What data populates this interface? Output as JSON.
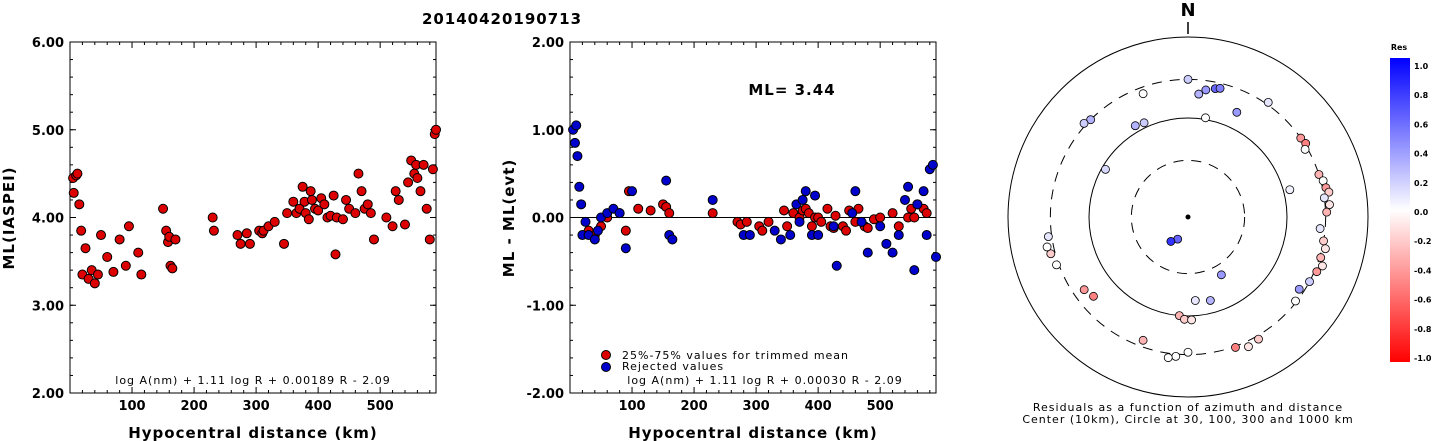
{
  "event_id": "20140420190713",
  "colors": {
    "trimmed": "#dd0000",
    "rejected": "#0000cc",
    "marker_edge": "#000000"
  },
  "chart_data": [
    {
      "id": "left",
      "type": "scatter",
      "title": "",
      "xlabel": "Hypocentral distance (km)",
      "ylabel": "ML(IASPEI)",
      "xlim": [
        0,
        590
      ],
      "ylim": [
        2.0,
        6.0
      ],
      "xticks": [
        100,
        200,
        300,
        400,
        500
      ],
      "yticks": [
        "2.00",
        "3.00",
        "4.00",
        "5.00",
        "6.00"
      ],
      "formula": "log A(nm) + 1.11 log R + 0.00189 R - 2.09",
      "series": [
        {
          "x": [
            5,
            6,
            10,
            12,
            15,
            18,
            20,
            25,
            30,
            35,
            40,
            45,
            50,
            60,
            70,
            80,
            90,
            95,
            110,
            115,
            150,
            155,
            158,
            160,
            162,
            165,
            170,
            230,
            232,
            270,
            275,
            285,
            290,
            305,
            310,
            312,
            320,
            330,
            345,
            350,
            360,
            365,
            370,
            375,
            378,
            380,
            385,
            388,
            390,
            395,
            400,
            405,
            410,
            415,
            420,
            425,
            428,
            430,
            440,
            445,
            450,
            460,
            465,
            470,
            475,
            480,
            485,
            490,
            510,
            520,
            525,
            530,
            540,
            545,
            550,
            555,
            558,
            560,
            565,
            570,
            575,
            580,
            585,
            588,
            590
          ],
          "y": [
            4.45,
            4.28,
            4.48,
            4.5,
            4.15,
            3.85,
            3.35,
            3.65,
            3.3,
            3.4,
            3.25,
            3.35,
            3.8,
            3.55,
            3.38,
            3.75,
            3.45,
            3.9,
            3.6,
            3.35,
            4.1,
            3.85,
            3.72,
            3.78,
            3.45,
            3.42,
            3.75,
            4.0,
            3.85,
            3.8,
            3.7,
            3.82,
            3.7,
            3.85,
            3.82,
            3.85,
            3.9,
            3.95,
            3.7,
            4.05,
            4.18,
            4.05,
            4.1,
            4.35,
            4.18,
            4.05,
            3.98,
            4.3,
            4.2,
            4.1,
            4.08,
            4.22,
            4.15,
            4.0,
            4.02,
            4.25,
            3.58,
            4.0,
            3.98,
            4.2,
            4.1,
            4.05,
            4.5,
            4.3,
            4.1,
            4.15,
            4.05,
            3.75,
            4.0,
            3.9,
            4.3,
            4.2,
            3.92,
            4.4,
            4.65,
            4.5,
            4.6,
            4.45,
            4.3,
            4.6,
            4.1,
            3.75,
            4.55,
            4.95,
            5.0
          ]
        }
      ]
    },
    {
      "id": "middle",
      "type": "scatter",
      "title": "",
      "xlabel": "Hypocentral distance (km)",
      "ylabel": "ML - ML(evt)",
      "xlim": [
        0,
        590
      ],
      "ylim": [
        -2.0,
        2.0
      ],
      "xticks": [
        100,
        200,
        300,
        400,
        500
      ],
      "yticks": [
        "-2.00",
        "-1.00",
        "0.00",
        "1.00",
        "2.00"
      ],
      "annotation": "ML= 3.44",
      "legend": [
        "25%-75% values for trimmed mean",
        "Rejected values"
      ],
      "formula": "log A(nm) + 1.11 log R + 0.00030 R - 2.09",
      "series": [
        {
          "name": "25%-75% values for trimmed mean",
          "x": [
            30,
            40,
            50,
            60,
            80,
            90,
            95,
            110,
            130,
            150,
            155,
            160,
            230,
            270,
            275,
            285,
            305,
            310,
            320,
            345,
            350,
            360,
            370,
            375,
            380,
            385,
            390,
            395,
            400,
            405,
            415,
            420,
            425,
            428,
            440,
            445,
            450,
            460,
            465,
            475,
            480,
            490,
            500,
            520,
            530,
            545,
            550,
            555,
            560,
            570,
            575
          ],
          "y": [
            -0.15,
            -0.2,
            -0.1,
            0.0,
            0.05,
            -0.15,
            0.3,
            0.1,
            0.08,
            0.15,
            0.12,
            0.05,
            0.05,
            -0.05,
            -0.08,
            -0.05,
            -0.1,
            -0.15,
            -0.05,
            0.08,
            -0.1,
            0.05,
            0.0,
            0.08,
            0.1,
            0.05,
            -0.1,
            0.0,
            0.0,
            -0.05,
            0.1,
            -0.1,
            -0.12,
            0.02,
            -0.1,
            -0.15,
            0.08,
            -0.05,
            0.1,
            -0.1,
            -0.12,
            -0.02,
            0.0,
            0.05,
            -0.1,
            0.0,
            0.1,
            0.0,
            0.15,
            0.1,
            0.05
          ]
        },
        {
          "name": "Rejected values",
          "x": [
            5,
            8,
            10,
            12,
            15,
            18,
            20,
            25,
            30,
            40,
            45,
            50,
            60,
            70,
            80,
            90,
            100,
            155,
            160,
            165,
            230,
            280,
            290,
            330,
            340,
            355,
            365,
            370,
            375,
            380,
            390,
            395,
            400,
            425,
            430,
            455,
            460,
            470,
            480,
            500,
            510,
            520,
            530,
            540,
            545,
            555,
            560,
            570,
            575,
            580,
            585,
            590
          ],
          "y": [
            1.0,
            0.85,
            1.05,
            0.7,
            0.35,
            0.15,
            -0.2,
            -0.05,
            -0.2,
            -0.25,
            -0.15,
            0.0,
            0.05,
            0.1,
            0.05,
            -0.35,
            0.3,
            0.42,
            -0.2,
            -0.25,
            0.2,
            -0.2,
            -0.2,
            -0.15,
            -0.25,
            -0.2,
            0.15,
            -0.05,
            0.2,
            0.3,
            -0.2,
            0.25,
            -0.2,
            -0.1,
            -0.55,
            0.05,
            0.3,
            -0.05,
            -0.4,
            -0.1,
            -0.3,
            -0.4,
            -0.2,
            0.2,
            0.35,
            -0.6,
            0.15,
            0.3,
            -0.2,
            0.55,
            0.6,
            -0.45
          ]
        }
      ]
    },
    {
      "id": "polar",
      "type": "polar-scatter",
      "north_label": "N",
      "caption_line1": "Residuals as a function of azimuth and distance",
      "caption_line2": "Center (10km), Circle at 30, 100, 300 and 1000 km",
      "ring_radii_km": [
        10,
        30,
        100,
        300,
        1000
      ],
      "colorbar": {
        "title": "Res",
        "ticks": [
          "1.0",
          "0.8",
          "0.6",
          "0.4",
          "0.2",
          "0.0",
          "-0.2",
          "-0.4",
          "-0.6",
          "-0.8",
          "-1.0"
        ],
        "max_color": "#0000ff",
        "zero_color": "#ffffff",
        "min_color": "#ff0000"
      },
      "points_note": "azimuth in degrees from north (clockwise), distance in km, residual",
      "points": [
        {
          "az": 205,
          "dist": 12,
          "res": 0.6
        },
        {
          "az": 215,
          "dist": 14,
          "res": 0.8
        },
        {
          "az": 150,
          "dist": 40,
          "res": 0.4
        },
        {
          "az": 175,
          "dist": 65,
          "res": 0.1
        },
        {
          "az": 165,
          "dist": 70,
          "res": 0.3
        },
        {
          "az": 185,
          "dist": 100,
          "res": -0.3
        },
        {
          "az": 182,
          "dist": 110,
          "res": -0.2
        },
        {
          "az": 178,
          "dist": 112,
          "res": -0.1
        },
        {
          "az": 330,
          "dist": 120,
          "res": 0.3
        },
        {
          "az": 335,
          "dist": 115,
          "res": 0.2
        },
        {
          "az": 10,
          "dist": 105,
          "res": 0.0
        },
        {
          "az": 75,
          "dist": 120,
          "res": 0.05
        },
        {
          "az": 300,
          "dist": 90,
          "res": 0.15
        },
        {
          "az": 25,
          "dist": 160,
          "res": 0.4
        },
        {
          "az": 5,
          "dist": 200,
          "res": 0.3
        },
        {
          "az": 8,
          "dist": 230,
          "res": 0.4
        },
        {
          "az": 12,
          "dist": 250,
          "res": 0.6
        },
        {
          "az": 14,
          "dist": 260,
          "res": 0.5
        },
        {
          "az": 0,
          "dist": 300,
          "res": 0.2
        },
        {
          "az": 340,
          "dist": 250,
          "res": 0.0
        },
        {
          "az": 315,
          "dist": 300,
          "res": 0.3
        },
        {
          "az": 312,
          "dist": 320,
          "res": 0.2
        },
        {
          "az": 35,
          "dist": 320,
          "res": 0.1
        },
        {
          "az": 55,
          "dist": 300,
          "res": -0.4
        },
        {
          "az": 58,
          "dist": 310,
          "res": -0.5
        },
        {
          "az": 60,
          "dist": 280,
          "res": 0.0
        },
        {
          "az": 72,
          "dist": 300,
          "res": -0.3
        },
        {
          "az": 75,
          "dist": 320,
          "res": 0.0
        },
        {
          "az": 78,
          "dist": 330,
          "res": -0.4
        },
        {
          "az": 80,
          "dist": 350,
          "res": -0.2
        },
        {
          "az": 82,
          "dist": 300,
          "res": 0.1
        },
        {
          "az": 85,
          "dist": 340,
          "res": -0.1
        },
        {
          "az": 88,
          "dist": 310,
          "res": -0.3
        },
        {
          "az": 95,
          "dist": 260,
          "res": 0.1
        },
        {
          "az": 100,
          "dist": 300,
          "res": -0.2
        },
        {
          "az": 103,
          "dist": 330,
          "res": -0.1
        },
        {
          "az": 107,
          "dist": 310,
          "res": -0.3
        },
        {
          "az": 110,
          "dist": 350,
          "res": -0.1
        },
        {
          "az": 113,
          "dist": 320,
          "res": -0.4
        },
        {
          "az": 118,
          "dist": 300,
          "res": 0.2
        },
        {
          "az": 123,
          "dist": 260,
          "res": 0.4
        },
        {
          "az": 128,
          "dist": 290,
          "res": 0.0
        },
        {
          "az": 150,
          "dist": 330,
          "res": -0.2
        },
        {
          "az": 155,
          "dist": 350,
          "res": -0.1
        },
        {
          "az": 160,
          "dist": 310,
          "res": -0.5
        },
        {
          "az": 180,
          "dist": 280,
          "res": 0.0
        },
        {
          "az": 185,
          "dist": 320,
          "res": 0.0
        },
        {
          "az": 188,
          "dist": 340,
          "res": 0.0
        },
        {
          "az": 200,
          "dist": 250,
          "res": -0.3
        },
        {
          "az": 230,
          "dist": 200,
          "res": -0.5
        },
        {
          "az": 235,
          "dist": 220,
          "res": -0.4
        },
        {
          "az": 250,
          "dist": 320,
          "res": 0.0
        },
        {
          "az": 255,
          "dist": 340,
          "res": -0.2
        },
        {
          "az": 258,
          "dist": 360,
          "res": 0.0
        },
        {
          "az": 262,
          "dist": 330,
          "res": 0.1
        }
      ]
    }
  ]
}
